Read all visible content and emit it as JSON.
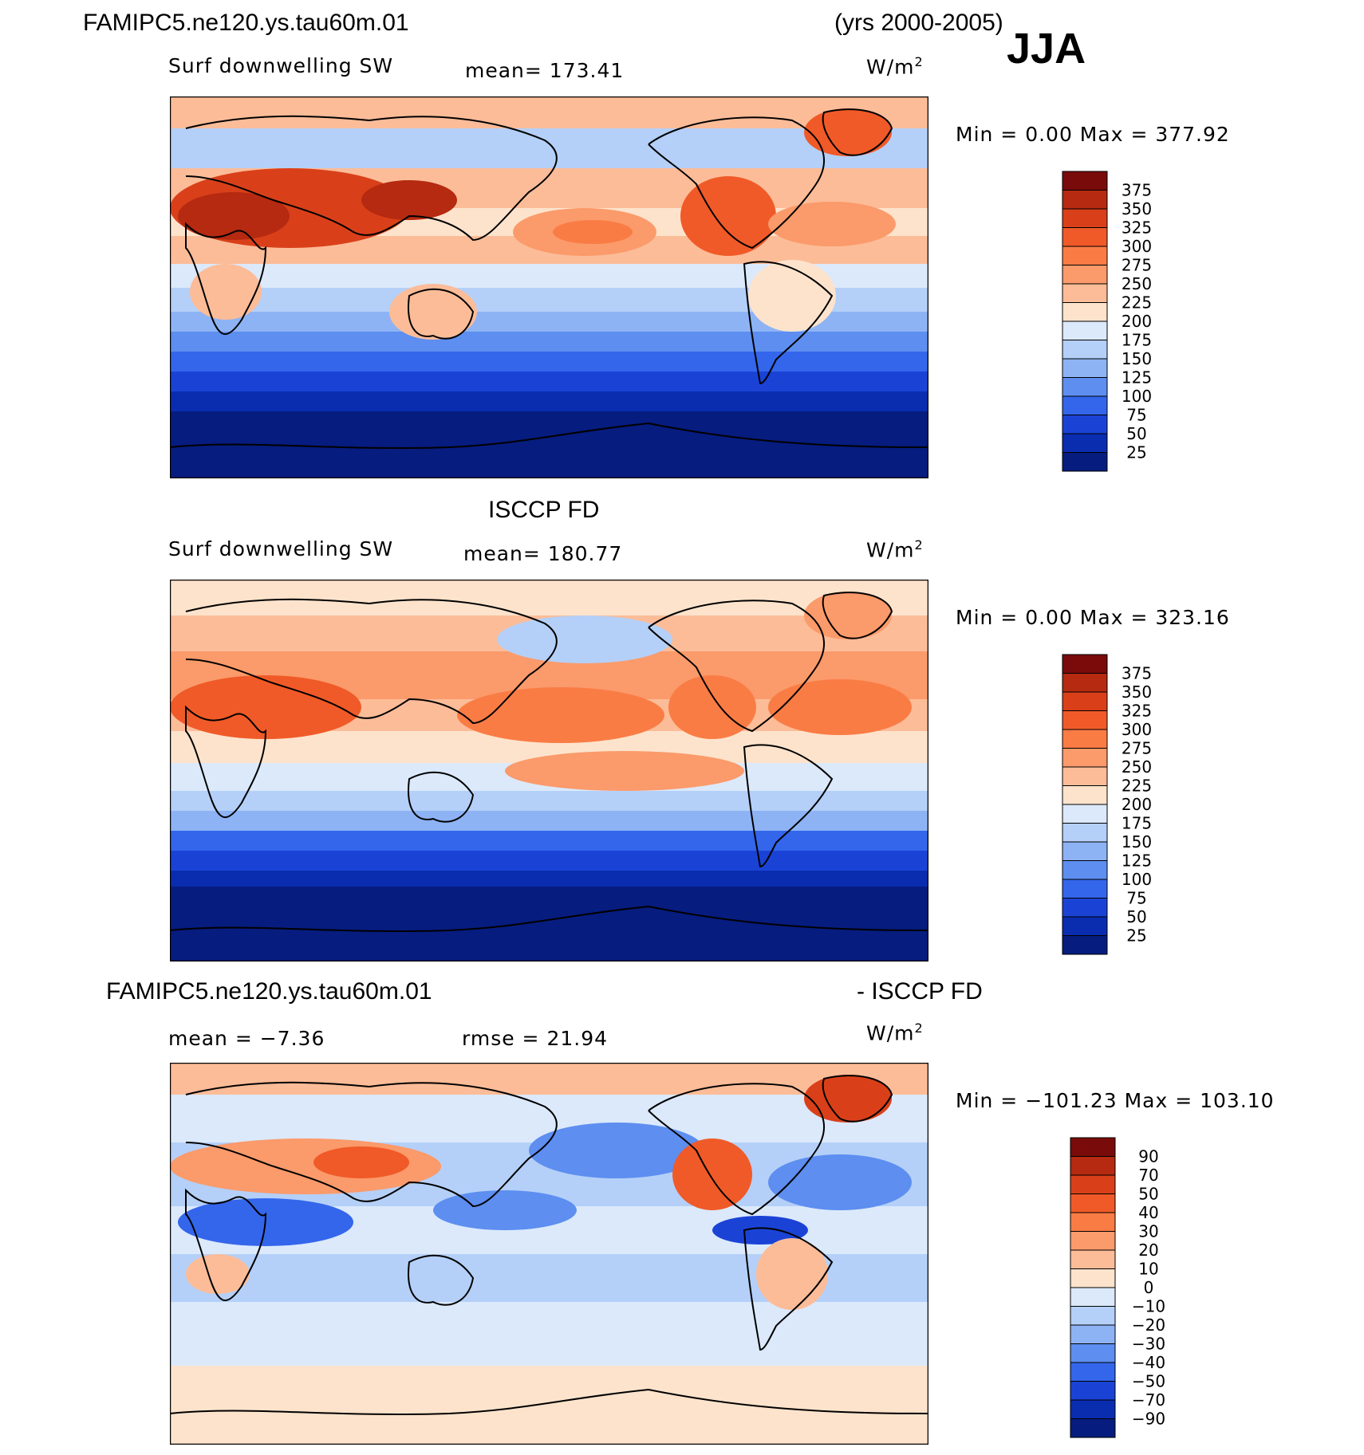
{
  "header": {
    "case_title": "FAMIPC5.ne120.ys.tau60m.01",
    "years": "(yrs 2000-2005)",
    "season": "JJA"
  },
  "panels": [
    {
      "variable": "Surf downwelling SW",
      "mean_text": "mean=  173.41",
      "units_base": "W/m",
      "units_exp": "2",
      "minmax_text": "Min  =     0.00  Max  =  377.92",
      "colorbar_labels": [
        "375",
        "350",
        "325",
        "300",
        "275",
        "250",
        "225",
        "200",
        "175",
        "150",
        "125",
        "100",
        "75",
        "50",
        "25"
      ]
    },
    {
      "title": "ISCCP FD",
      "variable": "Surf downwelling SW",
      "mean_text": "mean=  180.77",
      "units_base": "W/m",
      "units_exp": "2",
      "minmax_text": "Min  =     0.00  Max  =  323.16",
      "colorbar_labels": [
        "375",
        "350",
        "325",
        "300",
        "275",
        "250",
        "225",
        "200",
        "175",
        "150",
        "125",
        "100",
        "75",
        "50",
        "25"
      ]
    },
    {
      "title_left": "FAMIPC5.ne120.ys.tau60m.01",
      "title_right": "- ISCCP FD",
      "mean_text": "mean  =   −7.36",
      "rmse_text": "rmse  =    21.94",
      "units_base": "W/m",
      "units_exp": "2",
      "minmax_text": "Min  = −101.23  Max  =  103.10",
      "colorbar_labels": [
        "90",
        "70",
        "50",
        "40",
        "30",
        "20",
        "10",
        "0",
        "−10",
        "−20",
        "−30",
        "−40",
        "−50",
        "−70",
        "−90"
      ]
    }
  ],
  "colors": {
    "sw_scale": [
      "#7a0b0b",
      "#b52a10",
      "#d9401a",
      "#f05a28",
      "#fa7c45",
      "#fb9a6a",
      "#fcbc98",
      "#fde3cc",
      "#dbe9fb",
      "#b4d0f8",
      "#8db3f5",
      "#5d8ef0",
      "#3466eb",
      "#1a43d6",
      "#0a2db0",
      "#061c7e"
    ],
    "diff_scale": [
      "#7a0b0b",
      "#b52a10",
      "#d9401a",
      "#f05a28",
      "#fa7c45",
      "#fb9a6a",
      "#fcbc98",
      "#fde3cc",
      "#dbe9fb",
      "#b4d0f8",
      "#8db3f5",
      "#5d8ef0",
      "#3466eb",
      "#1a43d6",
      "#0a2db0",
      "#061c7e"
    ]
  }
}
